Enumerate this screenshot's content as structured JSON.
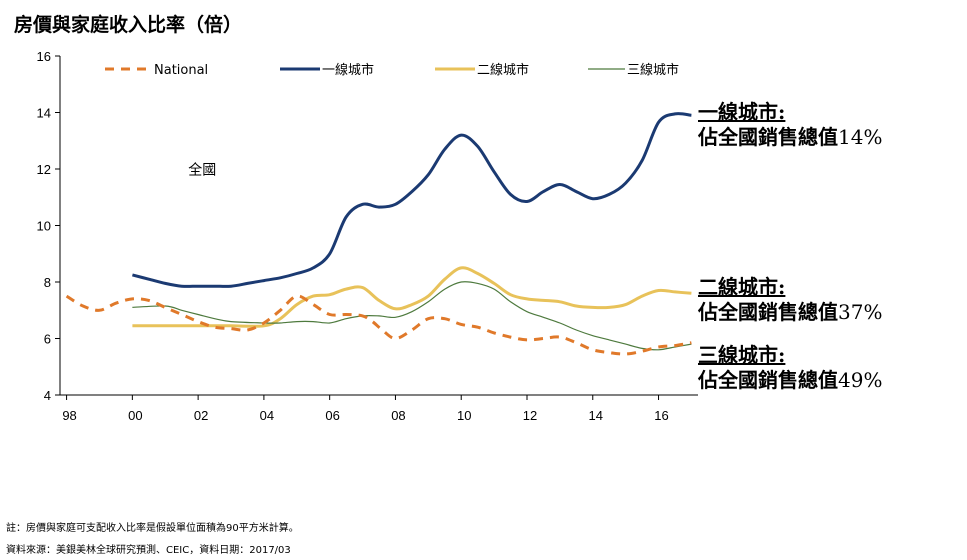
{
  "title": "房價與家庭收入比率（倍）",
  "chart_data": {
    "type": "line",
    "ylim": [
      4,
      16
    ],
    "yticks": [
      4,
      6,
      8,
      10,
      12,
      14,
      16
    ],
    "xlim": [
      1997.8,
      2017.2
    ],
    "xticks": [
      {
        "x": 1998,
        "label": "98"
      },
      {
        "x": 2000,
        "label": "00"
      },
      {
        "x": 2002,
        "label": "02"
      },
      {
        "x": 2004,
        "label": "04"
      },
      {
        "x": 2006,
        "label": "06"
      },
      {
        "x": 2008,
        "label": "08"
      },
      {
        "x": 2010,
        "label": "10"
      },
      {
        "x": 2012,
        "label": "12"
      },
      {
        "x": 2014,
        "label": "14"
      },
      {
        "x": 2016,
        "label": "16"
      }
    ],
    "inner_label": "全國",
    "legend_position": "top",
    "series": [
      {
        "name": "National",
        "color": "#E0792A",
        "style": "dashed",
        "points": [
          [
            1998,
            7.5
          ],
          [
            1998.5,
            7.15
          ],
          [
            1999,
            7.0
          ],
          [
            1999.5,
            7.25
          ],
          [
            2000,
            7.4
          ],
          [
            2000.5,
            7.35
          ],
          [
            2001,
            7.1
          ],
          [
            2001.5,
            6.85
          ],
          [
            2002,
            6.6
          ],
          [
            2002.5,
            6.4
          ],
          [
            2003,
            6.35
          ],
          [
            2003.5,
            6.3
          ],
          [
            2004,
            6.55
          ],
          [
            2004.5,
            7.0
          ],
          [
            2005,
            7.5
          ],
          [
            2005.5,
            7.2
          ],
          [
            2006,
            6.85
          ],
          [
            2006.5,
            6.85
          ],
          [
            2007,
            6.8
          ],
          [
            2007.3,
            6.6
          ],
          [
            2007.6,
            6.3
          ],
          [
            2008,
            6.0
          ],
          [
            2008.5,
            6.3
          ],
          [
            2009,
            6.7
          ],
          [
            2009.5,
            6.7
          ],
          [
            2010,
            6.5
          ],
          [
            2010.5,
            6.4
          ],
          [
            2011,
            6.2
          ],
          [
            2011.5,
            6.05
          ],
          [
            2012,
            5.95
          ],
          [
            2012.5,
            6.0
          ],
          [
            2013,
            6.05
          ],
          [
            2013.5,
            5.85
          ],
          [
            2014,
            5.6
          ],
          [
            2014.5,
            5.5
          ],
          [
            2015,
            5.45
          ],
          [
            2015.5,
            5.55
          ],
          [
            2016,
            5.7
          ],
          [
            2016.5,
            5.75
          ],
          [
            2017,
            5.85
          ]
        ]
      },
      {
        "name": "一線城市",
        "color": "#1B3A72",
        "style": "solid",
        "width": 3,
        "points": [
          [
            2000,
            8.25
          ],
          [
            2000.5,
            8.1
          ],
          [
            2001,
            7.95
          ],
          [
            2001.5,
            7.85
          ],
          [
            2002,
            7.85
          ],
          [
            2002.5,
            7.85
          ],
          [
            2003,
            7.85
          ],
          [
            2003.5,
            7.95
          ],
          [
            2004,
            8.05
          ],
          [
            2004.5,
            8.15
          ],
          [
            2005,
            8.3
          ],
          [
            2005.5,
            8.5
          ],
          [
            2006,
            9.0
          ],
          [
            2006.5,
            10.3
          ],
          [
            2007,
            10.75
          ],
          [
            2007.5,
            10.65
          ],
          [
            2008,
            10.75
          ],
          [
            2008.5,
            11.2
          ],
          [
            2009,
            11.8
          ],
          [
            2009.5,
            12.7
          ],
          [
            2010,
            13.2
          ],
          [
            2010.5,
            12.8
          ],
          [
            2011,
            11.9
          ],
          [
            2011.5,
            11.1
          ],
          [
            2012,
            10.85
          ],
          [
            2012.5,
            11.2
          ],
          [
            2013,
            11.45
          ],
          [
            2013.5,
            11.2
          ],
          [
            2014,
            10.95
          ],
          [
            2014.5,
            11.1
          ],
          [
            2015,
            11.5
          ],
          [
            2015.5,
            12.3
          ],
          [
            2016,
            13.65
          ],
          [
            2016.5,
            13.95
          ],
          [
            2017,
            13.9
          ]
        ]
      },
      {
        "name": "二線城市",
        "color": "#E8C25A",
        "style": "solid",
        "width": 3,
        "points": [
          [
            2000,
            6.45
          ],
          [
            2001,
            6.45
          ],
          [
            2002,
            6.45
          ],
          [
            2003,
            6.45
          ],
          [
            2004,
            6.45
          ],
          [
            2004.5,
            6.7
          ],
          [
            2005,
            7.2
          ],
          [
            2005.5,
            7.5
          ],
          [
            2006,
            7.55
          ],
          [
            2006.5,
            7.75
          ],
          [
            2007,
            7.8
          ],
          [
            2007.5,
            7.35
          ],
          [
            2008,
            7.05
          ],
          [
            2008.5,
            7.2
          ],
          [
            2009,
            7.5
          ],
          [
            2009.5,
            8.1
          ],
          [
            2010,
            8.5
          ],
          [
            2010.5,
            8.3
          ],
          [
            2011,
            7.95
          ],
          [
            2011.5,
            7.55
          ],
          [
            2012,
            7.4
          ],
          [
            2012.5,
            7.35
          ],
          [
            2013,
            7.3
          ],
          [
            2013.5,
            7.15
          ],
          [
            2014,
            7.1
          ],
          [
            2014.5,
            7.1
          ],
          [
            2015,
            7.2
          ],
          [
            2015.5,
            7.5
          ],
          [
            2016,
            7.7
          ],
          [
            2016.5,
            7.65
          ],
          [
            2017,
            7.6
          ]
        ]
      },
      {
        "name": "三線城市",
        "color": "#4E7A3E",
        "style": "solid",
        "width": 1.2,
        "points": [
          [
            2000,
            7.1
          ],
          [
            2001,
            7.15
          ],
          [
            2001.5,
            7.0
          ],
          [
            2002,
            6.85
          ],
          [
            2002.5,
            6.7
          ],
          [
            2003,
            6.6
          ],
          [
            2004,
            6.55
          ],
          [
            2004.5,
            6.55
          ],
          [
            2005,
            6.6
          ],
          [
            2005.5,
            6.6
          ],
          [
            2006,
            6.55
          ],
          [
            2006.5,
            6.7
          ],
          [
            2007,
            6.8
          ],
          [
            2007.5,
            6.8
          ],
          [
            2008,
            6.75
          ],
          [
            2008.5,
            6.95
          ],
          [
            2009,
            7.3
          ],
          [
            2009.5,
            7.75
          ],
          [
            2010,
            8.0
          ],
          [
            2010.5,
            7.95
          ],
          [
            2011,
            7.75
          ],
          [
            2011.5,
            7.3
          ],
          [
            2012,
            6.95
          ],
          [
            2012.5,
            6.75
          ],
          [
            2013,
            6.55
          ],
          [
            2013.5,
            6.3
          ],
          [
            2014,
            6.1
          ],
          [
            2014.5,
            5.95
          ],
          [
            2015,
            5.8
          ],
          [
            2015.5,
            5.65
          ],
          [
            2016,
            5.6
          ],
          [
            2016.5,
            5.7
          ],
          [
            2017,
            5.8
          ]
        ]
      }
    ]
  },
  "annotations": [
    {
      "head": "一線城市:",
      "body": "佔全國銷售總值",
      "pct": "14%"
    },
    {
      "head": "二線城市:",
      "body": "佔全國銷售總值",
      "pct": "37%"
    },
    {
      "head": "三線城市:",
      "body": "佔全國銷售總值",
      "pct": "49%"
    }
  ],
  "notes": {
    "note1": "註：房價與家庭可支配收入比率是假設單位面積為90平方米計算。",
    "note2": "資料來源：美銀美林全球研究預測、CEIC，資料日期：2017/03"
  }
}
